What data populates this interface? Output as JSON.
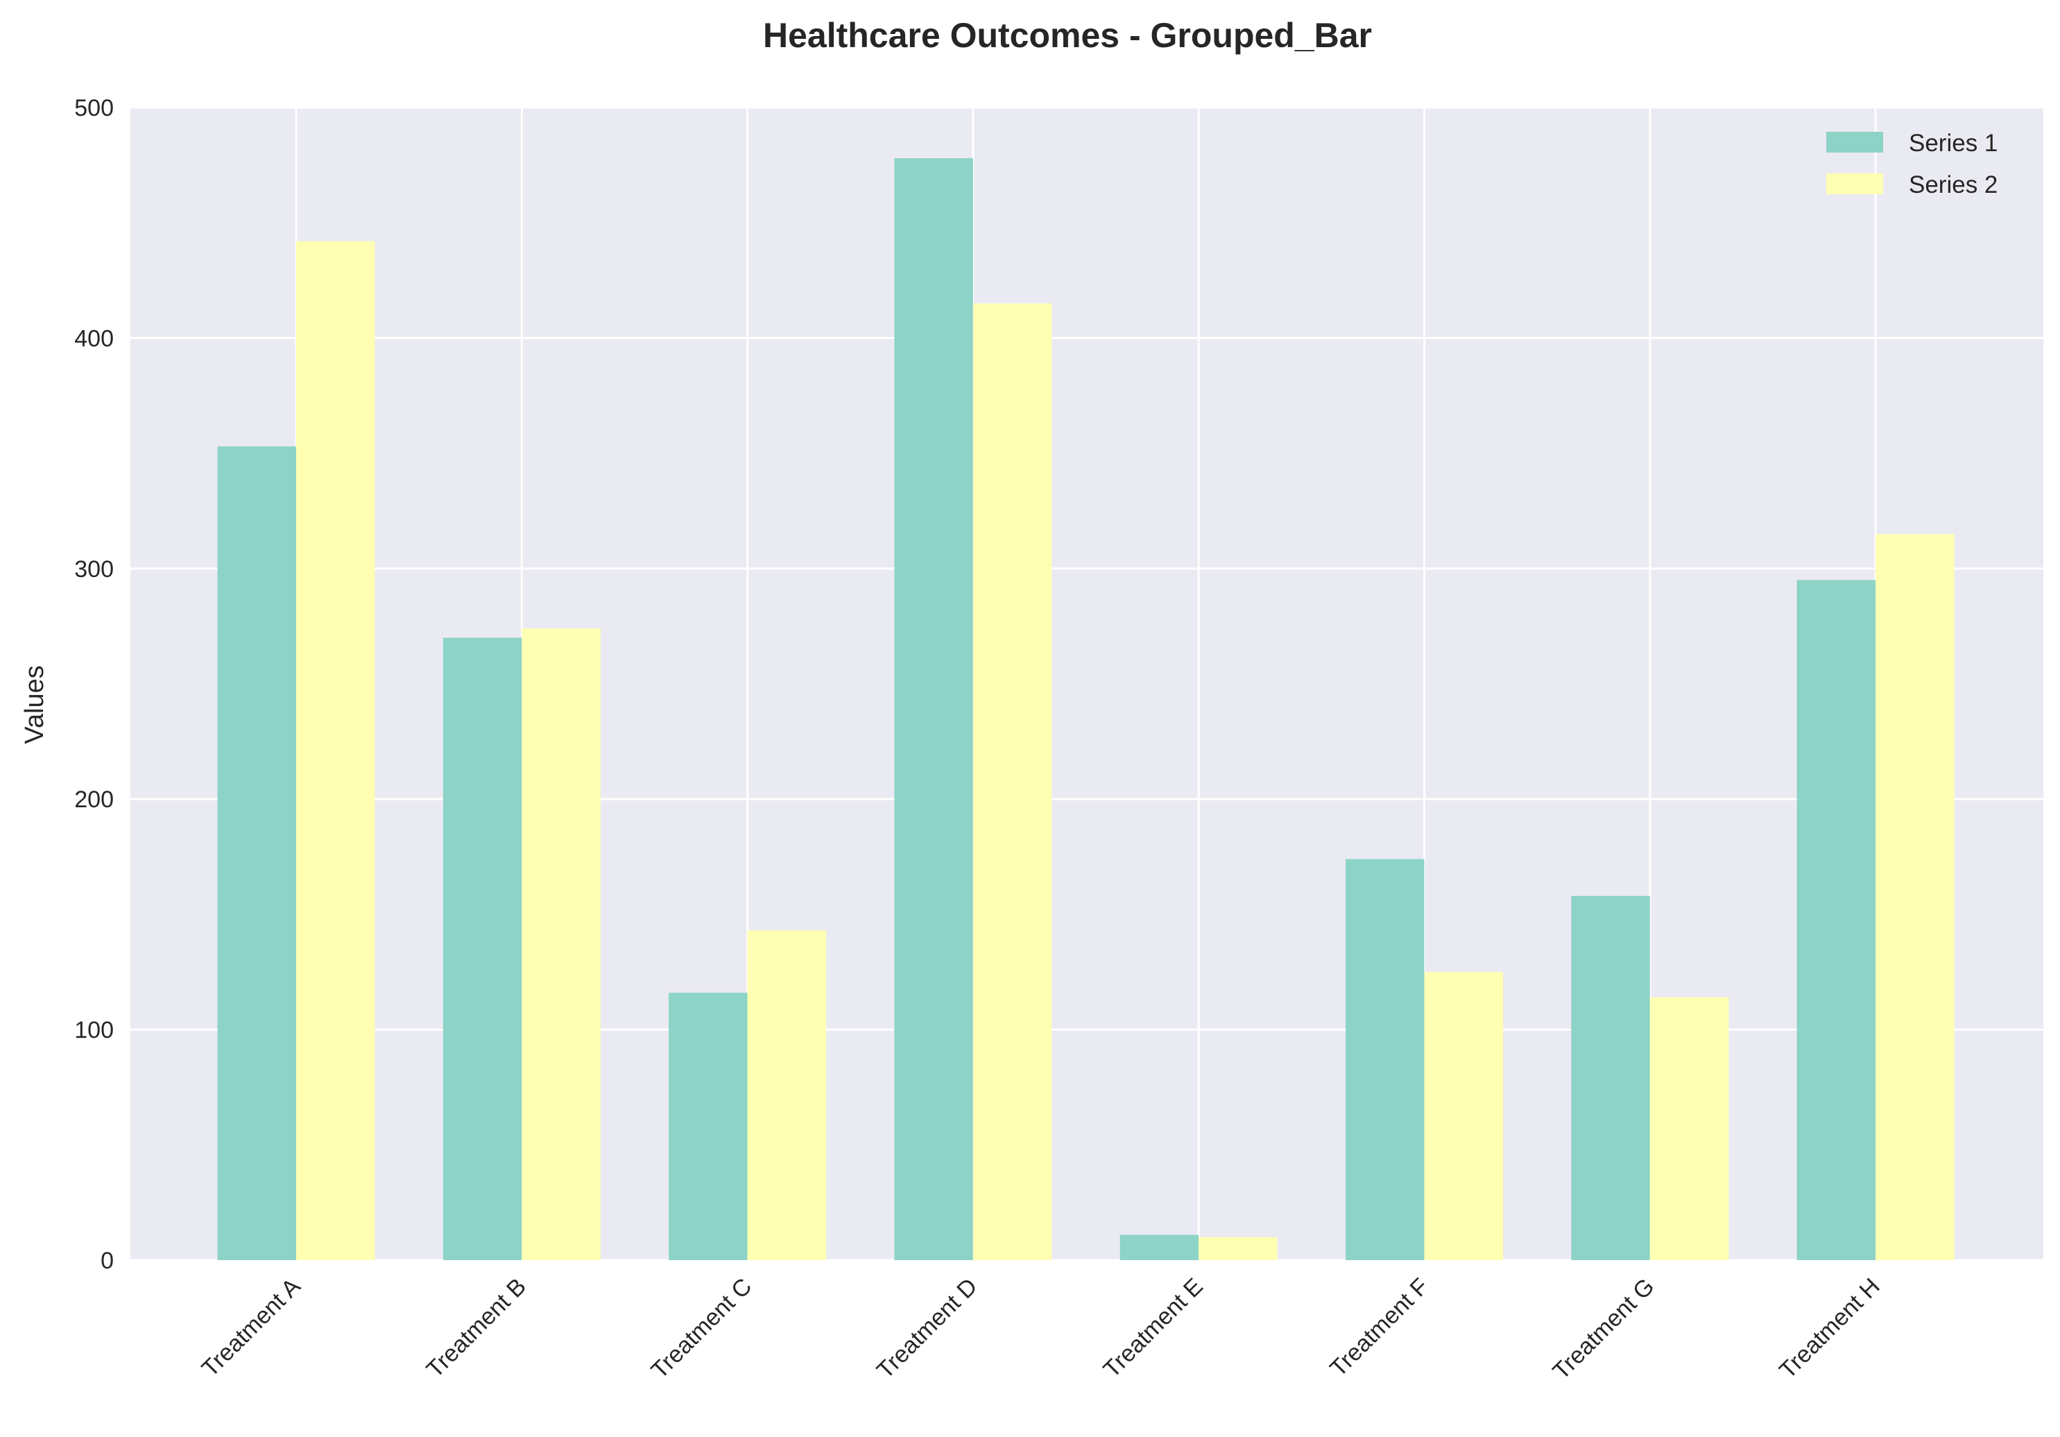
{
  "chart_data": {
    "type": "bar",
    "title": "Healthcare Outcomes - Grouped_Bar",
    "xlabel": "",
    "ylabel": "Values",
    "ylim": [
      0,
      500
    ],
    "yticks": [
      0,
      100,
      200,
      300,
      400,
      500
    ],
    "categories": [
      "Treatment A",
      "Treatment B",
      "Treatment C",
      "Treatment D",
      "Treatment E",
      "Treatment F",
      "Treatment G",
      "Treatment H"
    ],
    "series": [
      {
        "name": "Series 1",
        "color": "#8ed3c7",
        "values": [
          353,
          270,
          116,
          478,
          11,
          174,
          158,
          295
        ]
      },
      {
        "name": "Series 2",
        "color": "#ffffb3",
        "values": [
          442,
          274,
          143,
          415,
          10,
          125,
          114,
          315
        ]
      }
    ],
    "grid": true,
    "legend_position": "top-right",
    "background": "#eaeaf2",
    "grid_color": "#ffffff"
  }
}
